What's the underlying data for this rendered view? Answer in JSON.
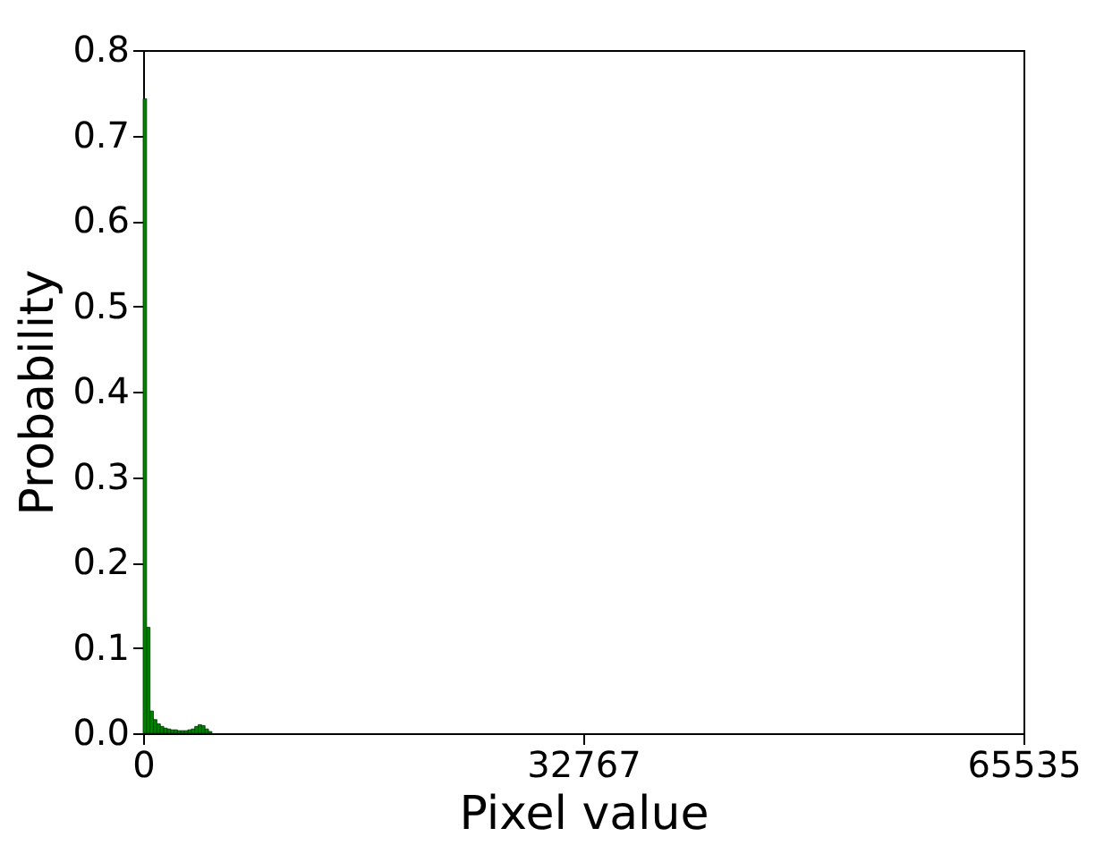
{
  "chart_data": {
    "type": "histogram",
    "xlabel": "Pixel value",
    "ylabel": "Probability",
    "bins": [
      0,
      256,
      512,
      768,
      1024,
      1280,
      1536,
      1792,
      2048,
      2304,
      2560,
      2816,
      3072,
      3328,
      3584,
      3840,
      4096,
      4352,
      4608,
      4864,
      5120
    ],
    "values": [
      0.743,
      0.124,
      0.026,
      0.016,
      0.011,
      0.008,
      0.006,
      0.005,
      0.004,
      0.004,
      0.003,
      0.003,
      0.003,
      0.004,
      0.005,
      0.008,
      0.01,
      0.009,
      0.005,
      0.002
    ],
    "color": "#008000",
    "xlim": [
      0,
      65535
    ],
    "xticks": [
      0,
      32767,
      65535
    ],
    "ylim": [
      0,
      0.8
    ],
    "yticks": [
      {
        "value": 0,
        "label": "0.0"
      },
      {
        "value": 0.1,
        "label": "0.1"
      },
      {
        "value": 0.2,
        "label": "0.2"
      },
      {
        "value": 0.3,
        "label": "0.3"
      },
      {
        "value": 0.4,
        "label": "0.4"
      },
      {
        "value": 0.5,
        "label": "0.5"
      },
      {
        "value": 0.6,
        "label": "0.6"
      },
      {
        "value": 0.7,
        "label": "0.7"
      },
      {
        "value": 0.8,
        "label": "0.8"
      }
    ],
    "grid": false
  }
}
